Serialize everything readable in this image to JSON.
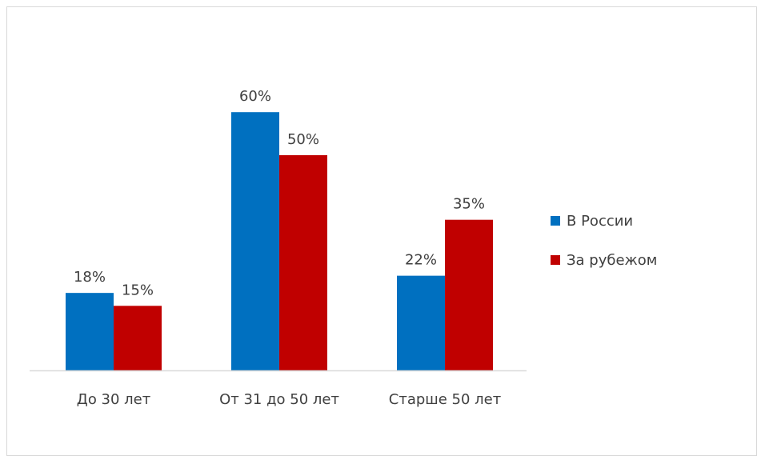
{
  "chart_data": {
    "type": "bar",
    "title": "",
    "xlabel": "",
    "ylabel": "",
    "categories": [
      "До 30 лет",
      "От 31 до 50 лет",
      "Старше 50 лет"
    ],
    "series": [
      {
        "name": "В России",
        "values": [
          18,
          60,
          22
        ],
        "labels": [
          "18%",
          "60%",
          "22%"
        ],
        "color": "#0070c0"
      },
      {
        "name": "За рубежом",
        "values": [
          15,
          50,
          35
        ],
        "labels": [
          "15%",
          "50%",
          "35%"
        ],
        "color": "#c00000"
      }
    ],
    "ylim": [
      0,
      70
    ],
    "grid": false,
    "legend": "right"
  }
}
